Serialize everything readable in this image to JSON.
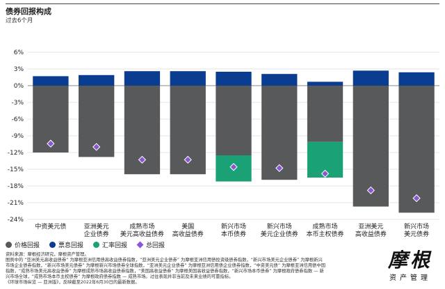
{
  "header": {
    "title": "债券回报构成",
    "subtitle": "过去6个月"
  },
  "colors": {
    "price": "#58595b",
    "coupon": "#0a3d8f",
    "fx": "#1aa276",
    "total": "#8a56d6"
  },
  "legend": {
    "price": "价格回报",
    "coupon": "票息回报",
    "fx": "汇率回报",
    "total": "总回报"
  },
  "chart_data": {
    "type": "bar",
    "stacked": true,
    "title": "债券回报构成",
    "subtitle": "过去6个月",
    "ylabel": "%",
    "ylim": [
      -24,
      6
    ],
    "yticks": [
      6,
      3,
      0,
      -3,
      -6,
      -9,
      -12,
      -15,
      -18,
      -21,
      -24
    ],
    "ytick_labels": [
      "6%",
      "3%",
      "0%",
      "-3%",
      "-6%",
      "-9%",
      "-12%",
      "-15%",
      "-18%",
      "-21%",
      "-24%"
    ],
    "categories": [
      [
        "中资美元债"
      ],
      [
        "亚洲美元",
        "企业债券"
      ],
      [
        "成熟市场",
        "美元高收益债券"
      ],
      [
        "美国",
        "高收益债券"
      ],
      [
        "新兴市场",
        "本币债券"
      ],
      [
        "新兴市场",
        "美元企业债券"
      ],
      [
        "成熟市场",
        "本币主权债券"
      ],
      [
        "亚洲美元",
        "高收益债券"
      ],
      [
        "新兴市场",
        "美元债券"
      ]
    ],
    "series": [
      {
        "name": "票息回报",
        "key": "coupon",
        "values": [
          1.7,
          1.9,
          2.6,
          2.6,
          2.5,
          2.1,
          0.7,
          2.7,
          2.4
        ]
      },
      {
        "name": "价格回报",
        "key": "price",
        "values": [
          -12.0,
          -12.8,
          -15.9,
          -15.9,
          -12.5,
          -16.9,
          -10.1,
          -21.7,
          -22.8
        ]
      },
      {
        "name": "汇率回报",
        "key": "fx",
        "values": [
          0,
          0,
          0,
          0,
          -4.7,
          0,
          -6.4,
          0,
          0
        ]
      }
    ],
    "total": {
      "name": "总回报",
      "values": [
        -10.4,
        -11.0,
        -13.3,
        -13.3,
        -14.6,
        -14.8,
        -15.8,
        -18.8,
        -20.2
      ]
    }
  },
  "notes": {
    "line1": "资料来源：摩根经济研究，摩根资产管理。",
    "line2": "图例中的 “亚洲美元高收益债券” 为摩根亚洲信用债高收益债券指数，“亚洲美元企业债券” 为摩根亚洲信用债投资级债券指数，“新兴市场美元企业债券” 为摩根新兴市场企业债券指数，“新兴市场美元债券” 为摩根新兴市场债券全球指数，“亚洲美元企业债券” 为摩根亚洲信用债企业债券指数，“中资美元债” 为摩根亚洲信用债中国指数，“成熟市场美元高收益债券” 为摩根成熟市场高收益债券指数，“美国高收益债券” 为摩根美国高收益债券指数，“新兴市场本币债券” 为摩根政府债券指数 — 新兴市场全球，“成熟市场本币主权债券” 为摩根政府债券指数 — 成熟市场。过往表现并非当前及未来业绩的可靠指标。",
    "line3": "《环球市场纵览 — 亚洲版》，反映截至2022年6月30日的最新数据。"
  },
  "logo": {
    "main": "摩根",
    "sub": "资产管理"
  }
}
